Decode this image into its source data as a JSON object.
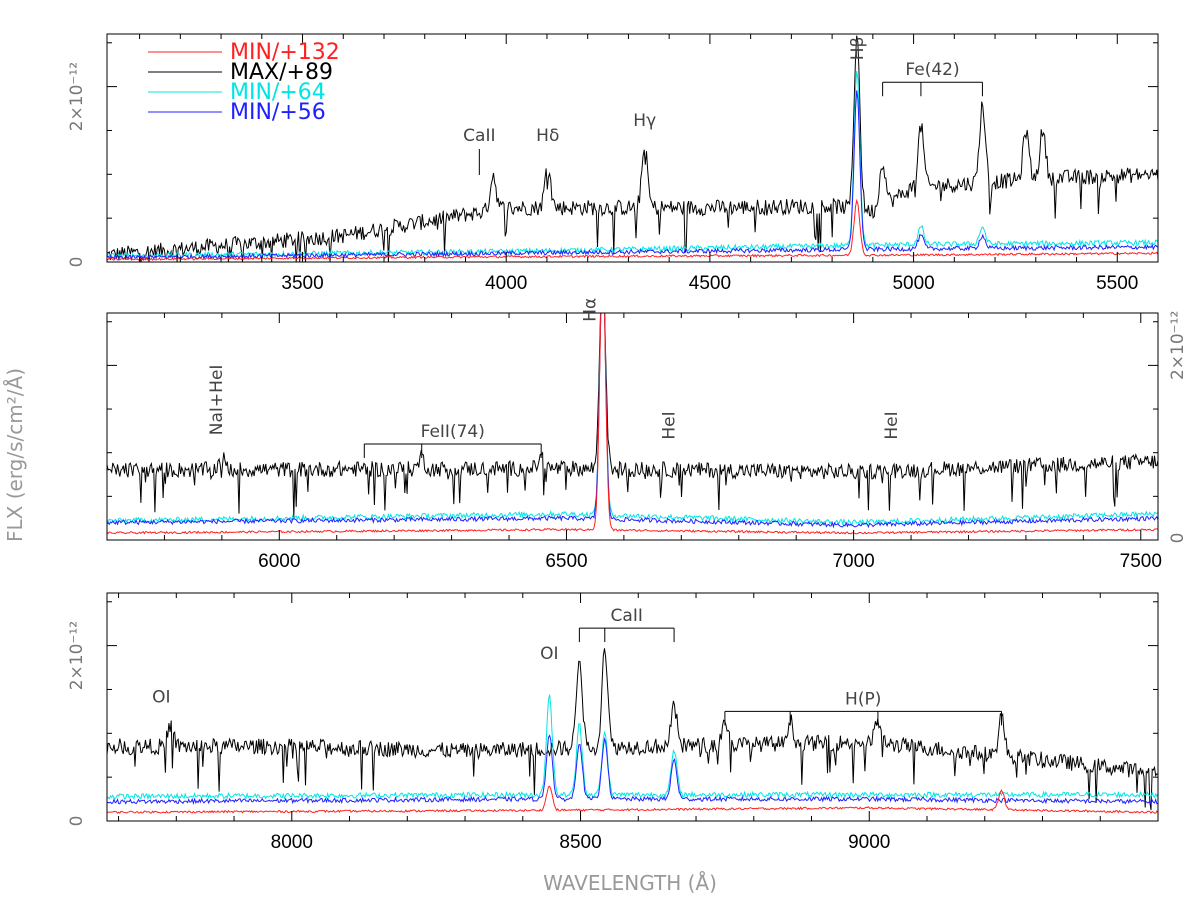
{
  "chart_data": {
    "type": "line",
    "ylabel": "FLX (erg/s/cm²/Å)",
    "xlabel": "WAVELENGTH (Å)",
    "y_scale_label": "2×10⁻¹²",
    "zero_label": "0",
    "legend": [
      {
        "name": "MIN/+132",
        "color": "#ff2020"
      },
      {
        "name": "MAX/+89",
        "color": "#000000"
      },
      {
        "name": "MIN/+64",
        "color": "#00e5e5"
      },
      {
        "name": "MIN/+56",
        "color": "#2020ff"
      }
    ],
    "panels": [
      {
        "xlim": [
          3020,
          5600
        ],
        "ylim": [
          0,
          2.6
        ],
        "xticks": [
          3500,
          4000,
          4500,
          5000,
          5500
        ],
        "continuum": {
          "MAX/+89": [
            [
              3020,
              0.08
            ],
            [
              3600,
              0.3
            ],
            [
              4000,
              0.62
            ],
            [
              4500,
              0.62
            ],
            [
              4800,
              0.64
            ],
            [
              4900,
              0.58
            ],
            [
              5000,
              0.85
            ],
            [
              5300,
              0.95
            ],
            [
              5600,
              1.0
            ]
          ],
          "MIN/+64": [
            [
              3020,
              0.07
            ],
            [
              4000,
              0.12
            ],
            [
              5000,
              0.2
            ],
            [
              5600,
              0.22
            ]
          ],
          "MIN/+56": [
            [
              3020,
              0.05
            ],
            [
              4000,
              0.1
            ],
            [
              5000,
              0.15
            ],
            [
              5600,
              0.17
            ]
          ],
          "MIN/+132": [
            [
              3020,
              0.03
            ],
            [
              4000,
              0.06
            ],
            [
              5000,
              0.08
            ],
            [
              5600,
              0.1
            ]
          ]
        },
        "lines": [
          {
            "label": "CaII",
            "x": 3934,
            "y": 1.38
          },
          {
            "label": "Hδ",
            "x": 4102,
            "y": 1.38
          },
          {
            "label": "Hγ",
            "x": 4340,
            "y": 1.55
          },
          {
            "label": "Hβ",
            "x": 4861,
            "y": 2.3
          }
        ],
        "multiplets": [
          {
            "label": "Fe(42)",
            "xs": [
              4924,
              5018,
              5169
            ],
            "y": 2.05
          }
        ],
        "peaks": {
          "MAX/+89": [
            [
              3968,
              1.0
            ],
            [
              4102,
              1.1
            ],
            [
              4340,
              1.3
            ],
            [
              4861,
              2.62
            ],
            [
              4924,
              1.15
            ],
            [
              5018,
              1.55
            ],
            [
              5169,
              1.8
            ],
            [
              5276,
              1.5
            ],
            [
              5317,
              1.5
            ]
          ],
          "MIN/+64": [
            [
              4861,
              2.2
            ],
            [
              5018,
              0.4
            ],
            [
              5169,
              0.4
            ]
          ],
          "MIN/+56": [
            [
              4861,
              1.95
            ],
            [
              5018,
              0.3
            ],
            [
              5169,
              0.3
            ]
          ],
          "MIN/+132": [
            [
              4861,
              0.7
            ]
          ]
        }
      },
      {
        "xlim": [
          5700,
          7530
        ],
        "ylim": [
          0,
          2.6
        ],
        "xticks": [
          6000,
          6500,
          7000,
          7500
        ],
        "continuum": {
          "MAX/+89": [
            [
              5700,
              0.8
            ],
            [
              6500,
              0.82
            ],
            [
              7000,
              0.78
            ],
            [
              7530,
              0.9
            ]
          ],
          "MIN/+64": [
            [
              5700,
              0.22
            ],
            [
              6500,
              0.3
            ],
            [
              7000,
              0.2
            ],
            [
              7530,
              0.3
            ]
          ],
          "MIN/+56": [
            [
              5700,
              0.2
            ],
            [
              6500,
              0.25
            ],
            [
              7000,
              0.17
            ],
            [
              7530,
              0.25
            ]
          ],
          "MIN/+132": [
            [
              5700,
              0.08
            ],
            [
              6500,
              0.12
            ],
            [
              7000,
              0.08
            ],
            [
              7530,
              0.12
            ]
          ]
        },
        "lines": [
          {
            "label": "NaI+HeI",
            "x": 5890,
            "y": 1.2
          },
          {
            "label": "Hα",
            "x": 6540,
            "y": 2.5
          },
          {
            "label": "HeI",
            "x": 6678,
            "y": 1.15
          },
          {
            "label": "HeI",
            "x": 7065,
            "y": 1.15
          }
        ],
        "multiplets": [
          {
            "label": "FeII(74)",
            "xs": [
              6148,
              6248,
              6456
            ],
            "y": 1.1
          }
        ],
        "peaks": {
          "MAX/+89": [
            [
              6563,
              3.2
            ],
            [
              5900,
              0.95
            ],
            [
              6248,
              0.95
            ],
            [
              6456,
              0.95
            ]
          ],
          "MIN/+64": [
            [
              6563,
              3.2
            ]
          ],
          "MIN/+56": [
            [
              6563,
              3.2
            ]
          ],
          "MIN/+132": [
            [
              6563,
              3.2
            ]
          ]
        }
      },
      {
        "xlim": [
          7680,
          9500
        ],
        "ylim": [
          0,
          2.6
        ],
        "xticks": [
          8000,
          8500,
          9000
        ],
        "continuum": {
          "MAX/+89": [
            [
              7680,
              0.85
            ],
            [
              8000,
              0.85
            ],
            [
              8300,
              0.8
            ],
            [
              8600,
              0.85
            ],
            [
              9000,
              0.9
            ],
            [
              9300,
              0.7
            ],
            [
              9500,
              0.55
            ]
          ],
          "MIN/+64": [
            [
              7680,
              0.28
            ],
            [
              8400,
              0.3
            ],
            [
              9000,
              0.3
            ],
            [
              9500,
              0.3
            ]
          ],
          "MIN/+56": [
            [
              7680,
              0.22
            ],
            [
              8400,
              0.25
            ],
            [
              9000,
              0.25
            ],
            [
              9500,
              0.22
            ]
          ],
          "MIN/+132": [
            [
              7680,
              0.1
            ],
            [
              8400,
              0.12
            ],
            [
              9000,
              0.15
            ],
            [
              9500,
              0.1
            ]
          ]
        },
        "lines": [
          {
            "label": "OI",
            "x": 7774,
            "y": 1.35
          },
          {
            "label": "OI",
            "x": 8446,
            "y": 1.85
          }
        ],
        "multiplets": [
          {
            "label": "CaII",
            "xs": [
              8498,
              8542,
              8662
            ],
            "y": 2.2
          },
          {
            "label": "H(P)",
            "xs": [
              8750,
              8863,
              9015,
              9229
            ],
            "y": 1.25
          }
        ],
        "peaks": {
          "MAX/+89": [
            [
              7790,
              1.1
            ],
            [
              8498,
              1.9
            ],
            [
              8542,
              2.0
            ],
            [
              8662,
              1.3
            ],
            [
              8750,
              1.15
            ],
            [
              8863,
              1.15
            ],
            [
              9015,
              1.15
            ],
            [
              9229,
              1.2
            ]
          ],
          "MIN/+64": [
            [
              8446,
              1.45
            ],
            [
              8498,
              1.1
            ],
            [
              8542,
              1.0
            ],
            [
              8662,
              0.8
            ]
          ],
          "MIN/+56": [
            [
              8446,
              1.0
            ],
            [
              8498,
              0.9
            ],
            [
              8542,
              0.95
            ],
            [
              8662,
              0.7
            ]
          ],
          "MIN/+132": [
            [
              8446,
              0.4
            ],
            [
              9229,
              0.35
            ]
          ]
        }
      }
    ]
  }
}
